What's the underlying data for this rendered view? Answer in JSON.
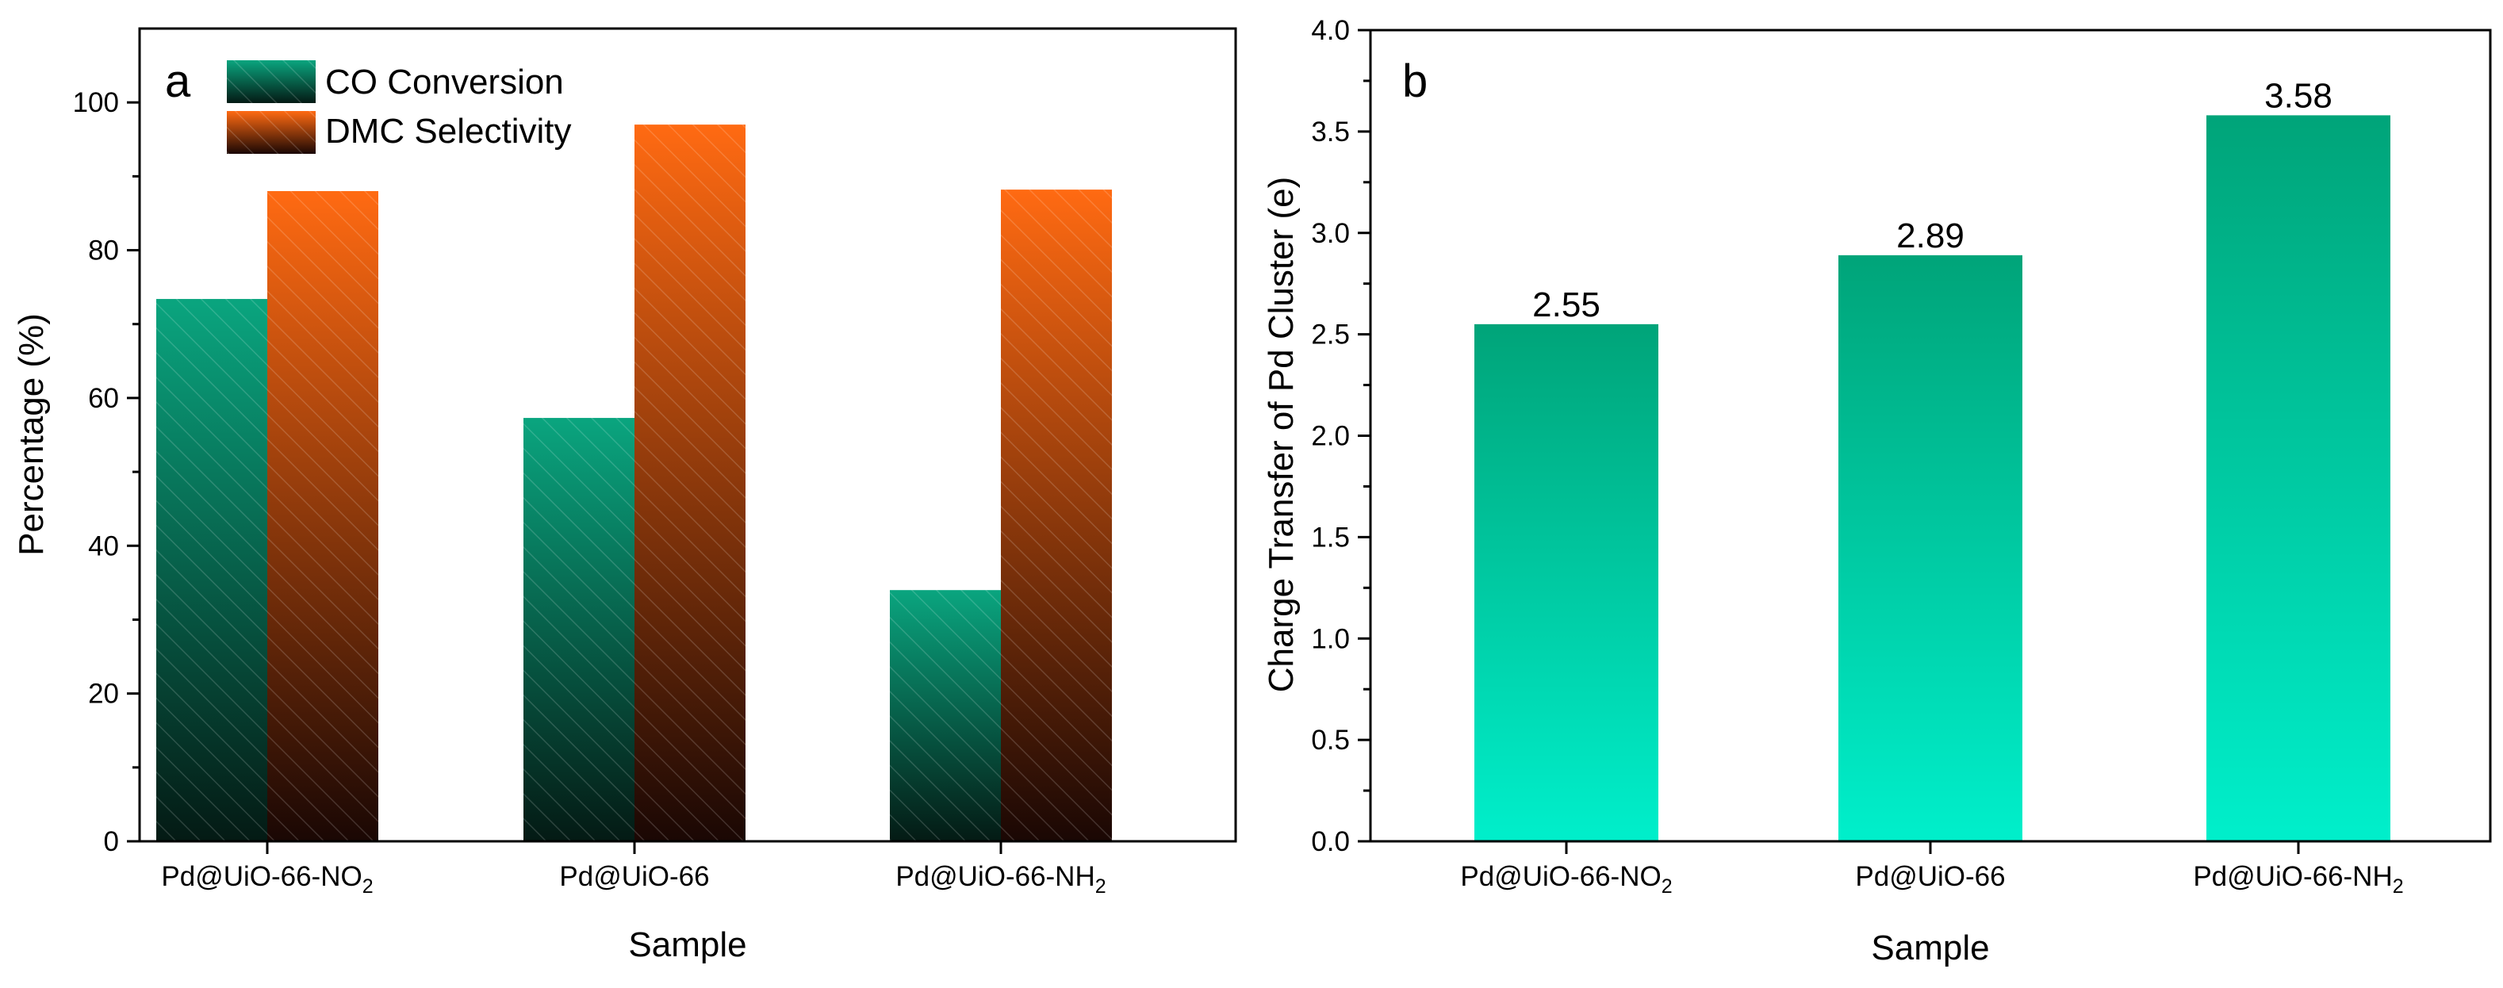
{
  "colors": {
    "co_top": "#0aa57f",
    "co_bottom": "#041a14",
    "dmc_top": "#ff6a12",
    "dmc_bottom": "#1a0704",
    "charge_top": "#00a479",
    "charge_bottom": "#00efcb",
    "axis": "#000000"
  },
  "chart_data": [
    {
      "type": "bar",
      "panel": "a",
      "categories": [
        {
          "base": "Pd@UiO-66-NO",
          "sub": "2"
        },
        {
          "base": "Pd@UiO-66",
          "sub": ""
        },
        {
          "base": "Pd@UiO-66-NH",
          "sub": "2"
        }
      ],
      "series": [
        {
          "name": "CO Conversion",
          "values": [
            73.4,
            57.3,
            34.0
          ]
        },
        {
          "name": "DMC Selectivity",
          "values": [
            88.0,
            97.0,
            88.2
          ]
        }
      ],
      "xlabel": "Sample",
      "ylabel": "Percentage (%)",
      "ylim": [
        0,
        110
      ],
      "yticks": [
        0,
        20,
        40,
        60,
        80,
        100
      ],
      "ytick_labels": [
        "0",
        "20",
        "40",
        "60",
        "80",
        "100"
      ],
      "legend": "top-left"
    },
    {
      "type": "bar",
      "panel": "b",
      "categories": [
        {
          "base": "Pd@UiO-66-NO",
          "sub": "2"
        },
        {
          "base": "Pd@UiO-66",
          "sub": ""
        },
        {
          "base": "Pd@UiO-66-NH",
          "sub": "2"
        }
      ],
      "values": [
        2.55,
        2.89,
        3.58
      ],
      "data_labels": [
        "2.55",
        "2.89",
        "3.58"
      ],
      "xlabel": "Sample",
      "ylabel": "Charge Transfer of Pd Cluster (e)",
      "ylim": [
        0,
        4.0
      ],
      "yticks": [
        0,
        0.5,
        1.0,
        1.5,
        2.0,
        2.5,
        3.0,
        3.5,
        4.0
      ],
      "ytick_labels": [
        "0.0",
        "0.5",
        "1.0",
        "1.5",
        "2.0",
        "2.5",
        "3.0",
        "3.5",
        "4.0"
      ]
    }
  ]
}
